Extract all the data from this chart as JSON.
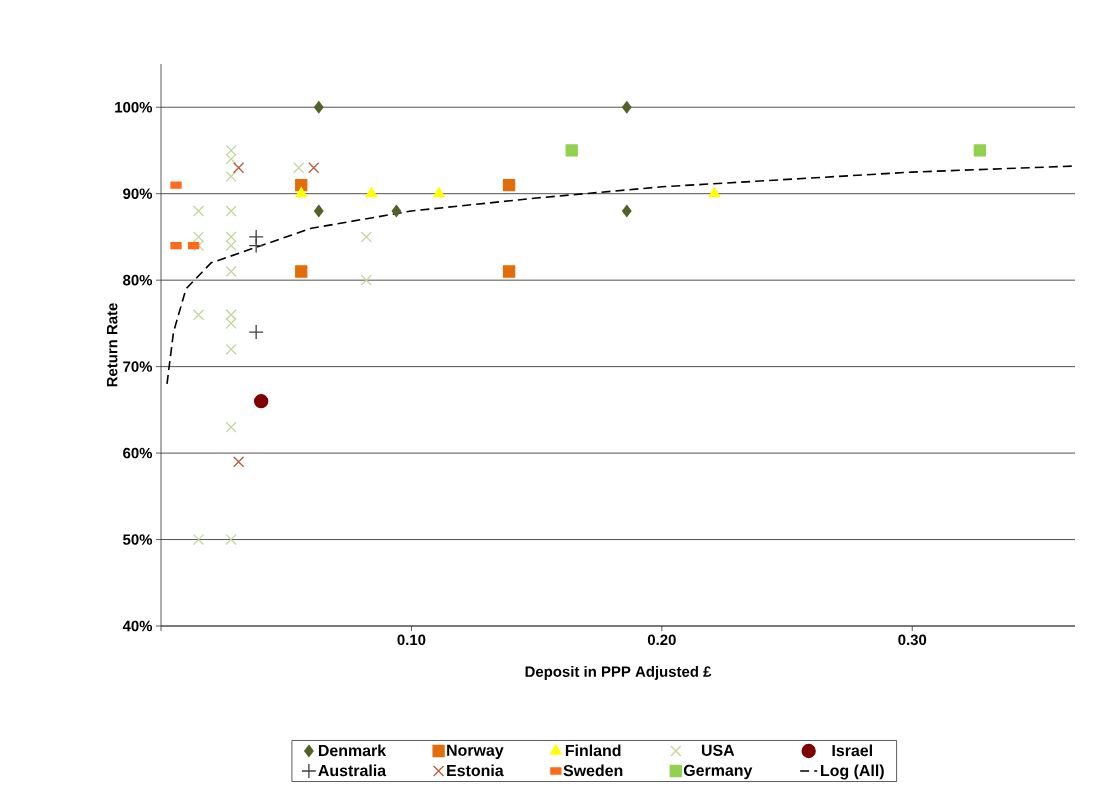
{
  "chart_data": {
    "type": "scatter",
    "xlabel": "Deposit in PPP Adjusted £",
    "ylabel": "Return Rate",
    "xlim": [
      0,
      0.365
    ],
    "ylim": [
      40,
      105
    ],
    "xticks": [
      {
        "value": 0,
        "label": null
      },
      {
        "value": 0.1,
        "label": "0.10"
      },
      {
        "value": 0.2,
        "label": "0.20"
      },
      {
        "value": 0.3,
        "label": "0.30"
      }
    ],
    "yticks": [
      {
        "value": 40,
        "label": "40%"
      },
      {
        "value": 50,
        "label": "50%"
      },
      {
        "value": 60,
        "label": "60%"
      },
      {
        "value": 70,
        "label": "70%"
      },
      {
        "value": 80,
        "label": "80%"
      },
      {
        "value": 90,
        "label": "90%"
      },
      {
        "value": 100,
        "label": "100%"
      }
    ],
    "grid": "y",
    "legend": "bottom",
    "series": [
      {
        "name": "Denmark",
        "color": "#4f6228",
        "marker": "diamond",
        "x": [
          0.063,
          0.063,
          0.094,
          0.186,
          0.186
        ],
        "values": [
          100,
          88,
          88,
          100,
          88
        ]
      },
      {
        "name": "Norway",
        "color": "#e46c0a",
        "marker": "square",
        "x": [
          0.056,
          0.056,
          0.139,
          0.139
        ],
        "values": [
          91,
          81,
          91,
          81
        ]
      },
      {
        "name": "Finland",
        "color": "#ffff00",
        "marker": "triangle",
        "x": [
          0.056,
          0.084,
          0.111,
          0.221
        ],
        "values": [
          90,
          90,
          90,
          90
        ]
      },
      {
        "name": "USA",
        "color": "#c3d69b",
        "marker": "cross",
        "x": [
          0.015,
          0.015,
          0.015,
          0.015,
          0.015,
          0.028,
          0.028,
          0.028,
          0.028,
          0.028,
          0.028,
          0.028,
          0.028,
          0.028,
          0.028,
          0.028,
          0.028,
          0.055,
          0.082,
          0.082
        ],
        "values": [
          88,
          85,
          84,
          76,
          50,
          95,
          94,
          92,
          88,
          85,
          84,
          81,
          76,
          75,
          72,
          63,
          50,
          93,
          85,
          80
        ]
      },
      {
        "name": "Israel",
        "color": "#7f0000",
        "marker": "circle",
        "x": [
          0.04
        ],
        "values": [
          66
        ]
      },
      {
        "name": "Australia",
        "color": "#404040",
        "marker": "plus",
        "x": [
          0.038,
          0.038,
          0.038
        ],
        "values": [
          85,
          84,
          74
        ]
      },
      {
        "name": "Estonia",
        "color": "#b65c3a",
        "marker": "cross",
        "x": [
          0.031,
          0.061,
          0.031
        ],
        "values": [
          93,
          93,
          59
        ]
      },
      {
        "name": "Sweden",
        "color": "#ff6a1a",
        "x": [
          0.006,
          0.006,
          0.013
        ],
        "values": [
          91,
          84,
          84
        ]
      },
      {
        "name": "Germany",
        "color": "#92d050",
        "marker": "square",
        "x": [
          0.164,
          0.327
        ],
        "values": [
          95,
          95
        ]
      },
      {
        "name": "Log (All)",
        "type": "line",
        "color": "#000000",
        "marker": "none",
        "line_style": "dashed",
        "x": [
          0.0024,
          0.005,
          0.01,
          0.02,
          0.04,
          0.06,
          0.1,
          0.15,
          0.2,
          0.3,
          0.365
        ],
        "values": [
          68,
          74,
          79,
          82,
          84,
          86,
          88,
          89.5,
          90.8,
          92.5,
          93.2
        ]
      }
    ]
  }
}
